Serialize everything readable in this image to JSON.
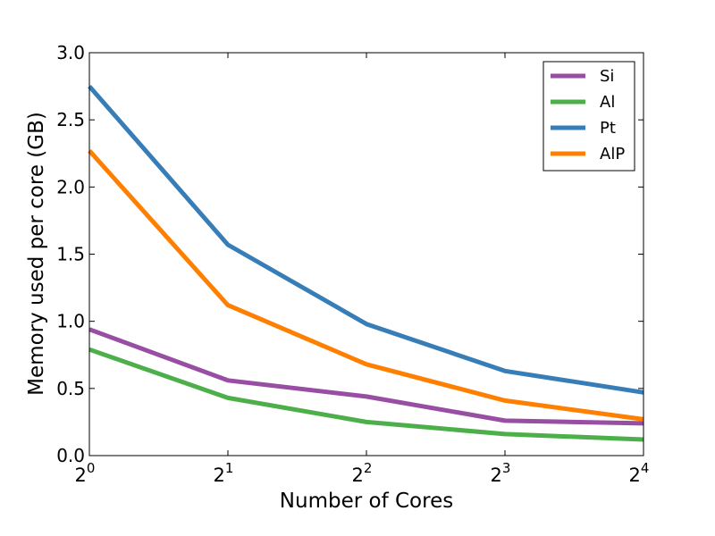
{
  "chart_data": {
    "type": "line",
    "title": "",
    "xlabel": "Number of Cores",
    "ylabel": "Memory used per core (GB)",
    "x": [
      1,
      2,
      4,
      8,
      16
    ],
    "x_scale": "log2",
    "xlim": [
      1,
      16
    ],
    "x_ticks": [
      {
        "base": "2",
        "exp": "0"
      },
      {
        "base": "2",
        "exp": "1"
      },
      {
        "base": "2",
        "exp": "2"
      },
      {
        "base": "2",
        "exp": "3"
      },
      {
        "base": "2",
        "exp": "4"
      }
    ],
    "ylim": [
      0,
      3.0
    ],
    "y_ticks": [
      "0.0",
      "0.5",
      "1.0",
      "1.5",
      "2.0",
      "2.5",
      "3.0"
    ],
    "grid": false,
    "legend_position": "top-right",
    "series": [
      {
        "name": "Si",
        "color": "#984ea3",
        "values": [
          0.94,
          0.56,
          0.44,
          0.26,
          0.24
        ]
      },
      {
        "name": "Al",
        "color": "#4daf4a",
        "values": [
          0.79,
          0.43,
          0.25,
          0.16,
          0.12
        ]
      },
      {
        "name": "Pt",
        "color": "#377eb8",
        "values": [
          2.75,
          1.57,
          0.98,
          0.63,
          0.47
        ]
      },
      {
        "name": "AlP",
        "color": "#ff7f00",
        "values": [
          2.27,
          1.12,
          0.68,
          0.41,
          0.27
        ]
      }
    ]
  }
}
